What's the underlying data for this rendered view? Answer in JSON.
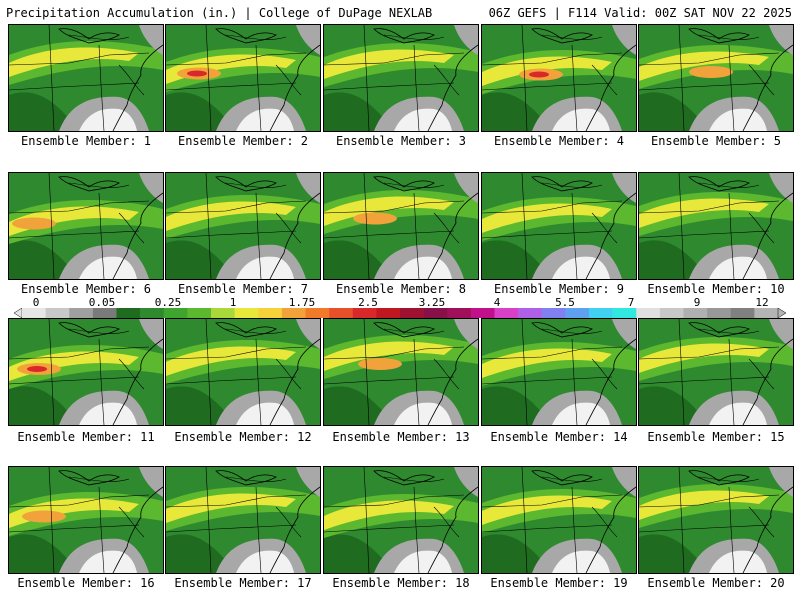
{
  "header": {
    "title": "Precipitation Accumulation (in.) | College of DuPage NEXLAB",
    "run": "06Z GEFS | F114 Valid: 00Z SAT NOV 22 2025"
  },
  "colors": {
    "base_green": "#2f8a2f",
    "dark_green": "#1f6b1f",
    "light_green": "#5cb82e",
    "yellow": "#e8e83a",
    "orange": "#f2a23a",
    "red": "#d8282a",
    "gray": "#a8a8a8",
    "white": "#f2f2f2"
  },
  "panels": [
    {
      "label": "Ensemble Member: 1"
    },
    {
      "label": "Ensemble Member: 2"
    },
    {
      "label": "Ensemble Member: 3"
    },
    {
      "label": "Ensemble Member: 4"
    },
    {
      "label": "Ensemble Member: 5"
    },
    {
      "label": "Ensemble Member: 6"
    },
    {
      "label": "Ensemble Member: 7"
    },
    {
      "label": "Ensemble Member: 8"
    },
    {
      "label": "Ensemble Member: 9"
    },
    {
      "label": "Ensemble Member: 10"
    },
    {
      "label": "Ensemble Member: 11"
    },
    {
      "label": "Ensemble Member: 12"
    },
    {
      "label": "Ensemble Member: 13"
    },
    {
      "label": "Ensemble Member: 14"
    },
    {
      "label": "Ensemble Member: 15"
    },
    {
      "label": "Ensemble Member: 16"
    },
    {
      "label": "Ensemble Member: 17"
    },
    {
      "label": "Ensemble Member: 18"
    },
    {
      "label": "Ensemble Member: 19"
    },
    {
      "label": "Ensemble Member: 20"
    }
  ],
  "colorbar": {
    "labels": [
      "0",
      "0.05",
      "0.25",
      "1",
      "1.75",
      "2.5",
      "3.25",
      "4",
      "5.5",
      "7",
      "9",
      "12"
    ],
    "colors": [
      "#e6e6e6",
      "#c8c8c8",
      "#a0a0a0",
      "#7a7a7a",
      "#1f6b1f",
      "#2f8a2f",
      "#3fa52f",
      "#5cb82e",
      "#a8d83a",
      "#e8e83a",
      "#f5d23a",
      "#f2a23a",
      "#f07a2a",
      "#e8502a",
      "#d8282a",
      "#c01820",
      "#a01030",
      "#881048",
      "#a0105a",
      "#c0108a",
      "#d840c8",
      "#b060e8",
      "#8080f0",
      "#60a0f0",
      "#40d0f0",
      "#30e8e0",
      "#e0e0e0",
      "#c8c8c8",
      "#b0b0b0",
      "#989898",
      "#808080",
      "#b4b4b4"
    ]
  }
}
